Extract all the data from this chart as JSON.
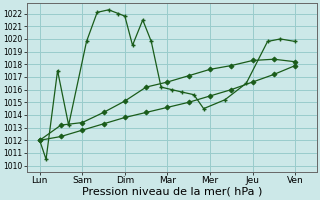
{
  "bg_color": "#cce8e8",
  "grid_color": "#99cccc",
  "line_color": "#1a5c1a",
  "xlabel": "Pression niveau de la mer( hPa )",
  "xlabel_fontsize": 8,
  "xtick_labels": [
    "Lun",
    "Sam",
    "Dim",
    "Mar",
    "Mer",
    "Jeu",
    "Ven"
  ],
  "xtick_positions": [
    0,
    1,
    2,
    3,
    4,
    5,
    6
  ],
  "ylim_min": 1009.5,
  "ylim_max": 1022.8,
  "yticks": [
    1010,
    1011,
    1012,
    1013,
    1014,
    1015,
    1016,
    1017,
    1018,
    1019,
    1020,
    1021,
    1022
  ],
  "line1_x": [
    0,
    0.15,
    0.42,
    0.68,
    1.1,
    1.35,
    1.62,
    1.85,
    2.0,
    2.18,
    2.42,
    2.62,
    2.85,
    3.1,
    3.35,
    3.62,
    3.85,
    4.35,
    4.85,
    5.35,
    5.65,
    6.0
  ],
  "line1_y": [
    1012.0,
    1010.5,
    1017.5,
    1013.2,
    1019.8,
    1022.1,
    1022.3,
    1022.0,
    1021.8,
    1019.5,
    1021.5,
    1019.8,
    1016.2,
    1016.0,
    1015.8,
    1015.6,
    1014.5,
    1015.2,
    1016.5,
    1019.8,
    1020.0,
    1019.8
  ],
  "line2_x": [
    0,
    0.5,
    1.0,
    1.5,
    2.0,
    2.5,
    3.0,
    3.5,
    4.0,
    4.5,
    5.0,
    5.5,
    6.0
  ],
  "line2_y": [
    1012.0,
    1013.2,
    1013.4,
    1014.2,
    1015.1,
    1016.2,
    1016.6,
    1017.1,
    1017.6,
    1017.9,
    1018.3,
    1018.4,
    1018.2
  ],
  "line3_x": [
    0,
    0.5,
    1.0,
    1.5,
    2.0,
    2.5,
    3.0,
    3.5,
    4.0,
    4.5,
    5.0,
    5.5,
    6.0
  ],
  "line3_y": [
    1012.0,
    1012.3,
    1012.8,
    1013.3,
    1013.8,
    1014.2,
    1014.6,
    1015.0,
    1015.5,
    1016.0,
    1016.6,
    1017.2,
    1017.9
  ]
}
